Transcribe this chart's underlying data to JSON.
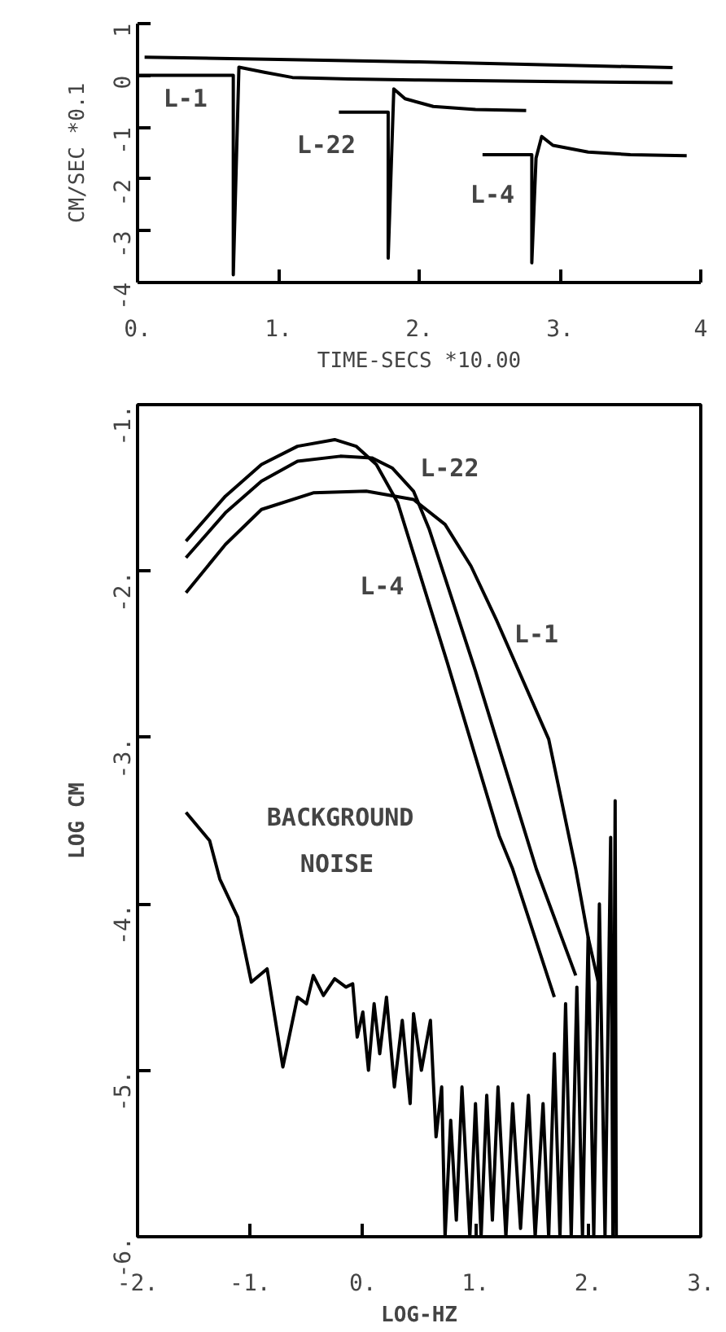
{
  "chart_data": [
    {
      "type": "line",
      "xlabel": "TIME-SECS *10.00",
      "ylabel": "CM/SEC *0.1",
      "xlim": [
        0,
        4
      ],
      "ylim": [
        -4,
        1
      ],
      "xticks": [
        {
          "value": 0,
          "label": "0."
        },
        {
          "value": 1,
          "label": "1."
        },
        {
          "value": 2,
          "label": "2."
        },
        {
          "value": 3,
          "label": "3."
        },
        4
      ],
      "yticks": [
        -4,
        -3,
        -2,
        -1,
        0,
        1
      ],
      "series": [
        {
          "color": "#000000",
          "x": [
            0.05,
            1.0,
            2.0,
            3.0,
            3.8
          ],
          "values": [
            0.35,
            0.31,
            0.26,
            0.2,
            0.15
          ]
        },
        {
          "color": "#000000",
          "x": [
            0,
            0.68,
            0.68,
            0.72,
            0.9,
            1.1,
            1.5,
            2.0,
            3.0,
            3.8
          ],
          "values": [
            0,
            0,
            -3.85,
            0.16,
            0.06,
            -0.04,
            -0.07,
            -0.09,
            -0.12,
            -0.14
          ]
        },
        {
          "color": "#000000",
          "x": [
            1.43,
            1.78,
            1.78,
            1.82,
            1.9,
            2.1,
            2.4,
            2.76
          ],
          "values": [
            -0.71,
            -0.71,
            -3.53,
            -0.26,
            -0.45,
            -0.6,
            -0.66,
            -0.68
          ]
        },
        {
          "color": "#000000",
          "x": [
            2.45,
            2.8,
            2.8,
            2.83,
            2.87,
            2.95,
            3.2,
            3.5,
            3.9
          ],
          "values": [
            -1.53,
            -1.53,
            -3.62,
            -1.6,
            -1.18,
            -1.35,
            -1.48,
            -1.53,
            -1.55
          ]
        }
      ],
      "annotations": [
        "L-1",
        "L-22",
        "L-4"
      ],
      "grid": false
    },
    {
      "type": "line",
      "xlabel": "LOG-HZ",
      "ylabel": "LOG CM",
      "xlim": [
        -2,
        3
      ],
      "ylim": [
        -6,
        -1
      ],
      "xticks": [
        {
          "value": -2,
          "label": "-2."
        },
        {
          "value": -1,
          "label": "-1."
        },
        {
          "value": 0,
          "label": "0."
        },
        {
          "value": 1,
          "label": "1."
        },
        {
          "value": 2,
          "label": "2."
        },
        {
          "value": 3,
          "label": "3."
        }
      ],
      "yticks": [
        {
          "value": -6,
          "label": "-6."
        },
        {
          "value": -5,
          "label": "-5."
        },
        {
          "value": -4,
          "label": "-4."
        },
        {
          "value": -3,
          "label": "-3."
        },
        {
          "value": -2,
          "label": "-2."
        },
        {
          "value": -1,
          "label": "-1."
        }
      ],
      "series": [
        {
          "color": "#000000",
          "x": [
            -1.57,
            -1.22,
            -0.9,
            -0.58,
            -0.25,
            -0.06,
            0.12,
            0.31,
            0.75,
            1.21,
            1.33,
            1.7
          ],
          "values": [
            -1.82,
            -1.55,
            -1.36,
            -1.25,
            -1.21,
            -1.25,
            -1.36,
            -1.59,
            -2.55,
            -3.59,
            -3.79,
            -4.56
          ]
        },
        {
          "color": "#000000",
          "x": [
            -1.57,
            -1.22,
            -0.9,
            -0.58,
            -0.2,
            0.08,
            0.26,
            0.45,
            0.59,
            1.0,
            1.54,
            1.89
          ],
          "values": [
            -1.92,
            -1.65,
            -1.46,
            -1.34,
            -1.31,
            -1.32,
            -1.38,
            -1.52,
            -1.75,
            -2.6,
            -3.79,
            -4.43
          ]
        },
        {
          "color": "#000000",
          "x": [
            -1.57,
            -1.22,
            -0.9,
            -0.44,
            0.03,
            0.45,
            0.73,
            0.96,
            1.19,
            1.65,
            1.89,
            2.0,
            2.1
          ],
          "values": [
            -2.13,
            -1.84,
            -1.63,
            -1.53,
            -1.52,
            -1.57,
            -1.72,
            -1.97,
            -2.3,
            -3.01,
            -3.79,
            -4.2,
            -4.5
          ]
        },
        {
          "color": "#000000",
          "x": [
            -1.57,
            -1.36,
            -1.27,
            -1.11,
            -0.99,
            -0.85,
            -0.71,
            -0.58,
            -0.5,
            -0.44,
            -0.35,
            -0.25,
            -0.15,
            -0.09,
            -0.05,
            0.0,
            0.05,
            0.1,
            0.15,
            0.21,
            0.28,
            0.35,
            0.42,
            0.45,
            0.52,
            0.6,
            0.65,
            0.7,
            0.73,
            0.78,
            0.83,
            0.88,
            0.95,
            1.0,
            1.05,
            1.1,
            1.15,
            1.2,
            1.27,
            1.33,
            1.4,
            1.47,
            1.53,
            1.6,
            1.65,
            1.7,
            1.75,
            1.8,
            1.85,
            1.9,
            1.95,
            2.0,
            2.05,
            2.1,
            2.15,
            2.2,
            2.22,
            2.24,
            2.25
          ],
          "values": [
            -3.45,
            -3.62,
            -3.85,
            -4.08,
            -4.47,
            -4.39,
            -4.98,
            -4.56,
            -4.6,
            -4.43,
            -4.55,
            -4.45,
            -4.5,
            -4.48,
            -4.8,
            -4.65,
            -5.0,
            -4.6,
            -4.9,
            -4.56,
            -5.1,
            -4.7,
            -5.2,
            -4.66,
            -5.0,
            -4.7,
            -5.4,
            -5.1,
            -6.0,
            -5.3,
            -5.9,
            -5.1,
            -6.0,
            -5.2,
            -6.0,
            -5.15,
            -5.9,
            -5.1,
            -6.0,
            -5.2,
            -5.95,
            -5.15,
            -6.0,
            -5.2,
            -6.0,
            -4.9,
            -6.0,
            -4.6,
            -6.0,
            -4.5,
            -6.0,
            -4.2,
            -6.0,
            -4.0,
            -6.0,
            -3.6,
            -6.0,
            -3.38,
            -6.0
          ]
        }
      ],
      "annotations": [
        "L-22",
        "L-4",
        "L-1",
        "BACKGROUND",
        "NOISE"
      ],
      "grid": false
    }
  ]
}
